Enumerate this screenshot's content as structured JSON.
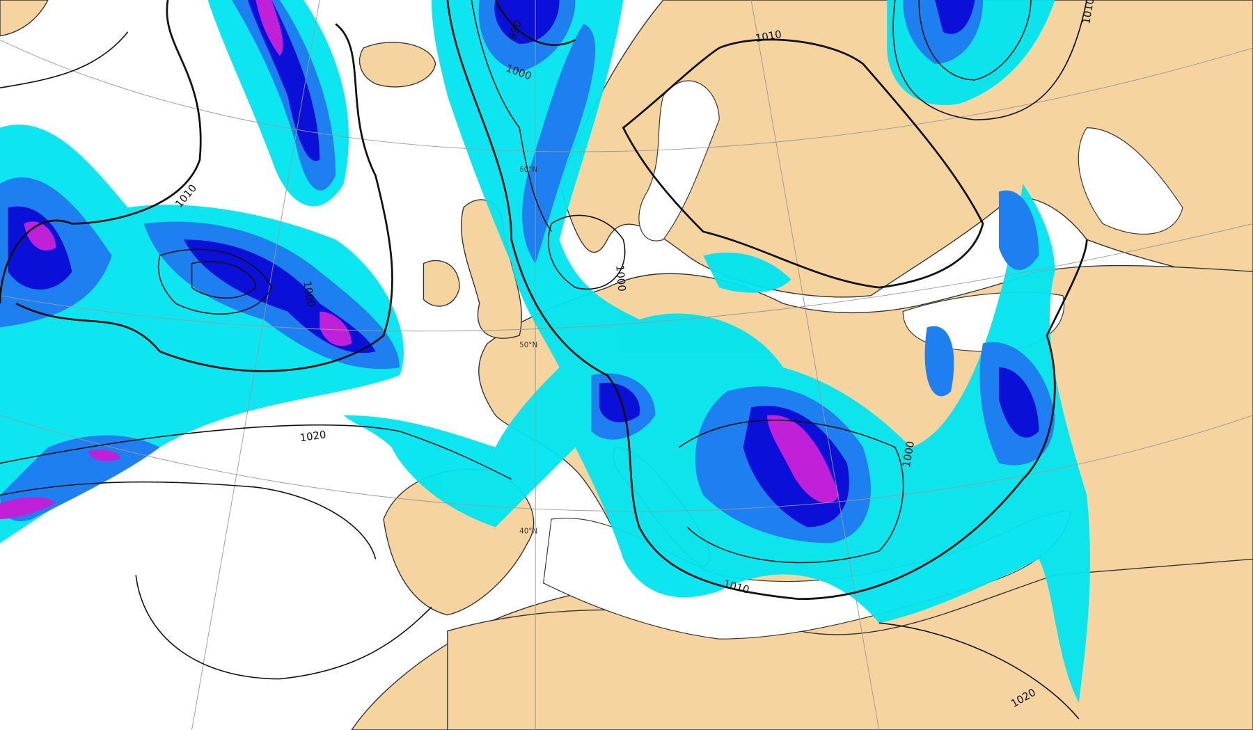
{
  "map": {
    "colors": {
      "sea": "#ffffff",
      "land": "#f5d4a0",
      "precip_light": "#00e5f0",
      "precip_moderate": "#1e7ff0",
      "precip_heavy": "#0a10d8",
      "precip_extreme": "#c020d8",
      "isobar": "#111111",
      "coastline": "#333333"
    },
    "isobar_labels": [
      "1010",
      "1000",
      "1020",
      "1000",
      "990",
      "1000",
      "1010",
      "1010",
      "1000",
      "1020",
      "1010"
    ],
    "latitude_labels": [
      "50°N",
      "40°N",
      "60°N"
    ]
  }
}
